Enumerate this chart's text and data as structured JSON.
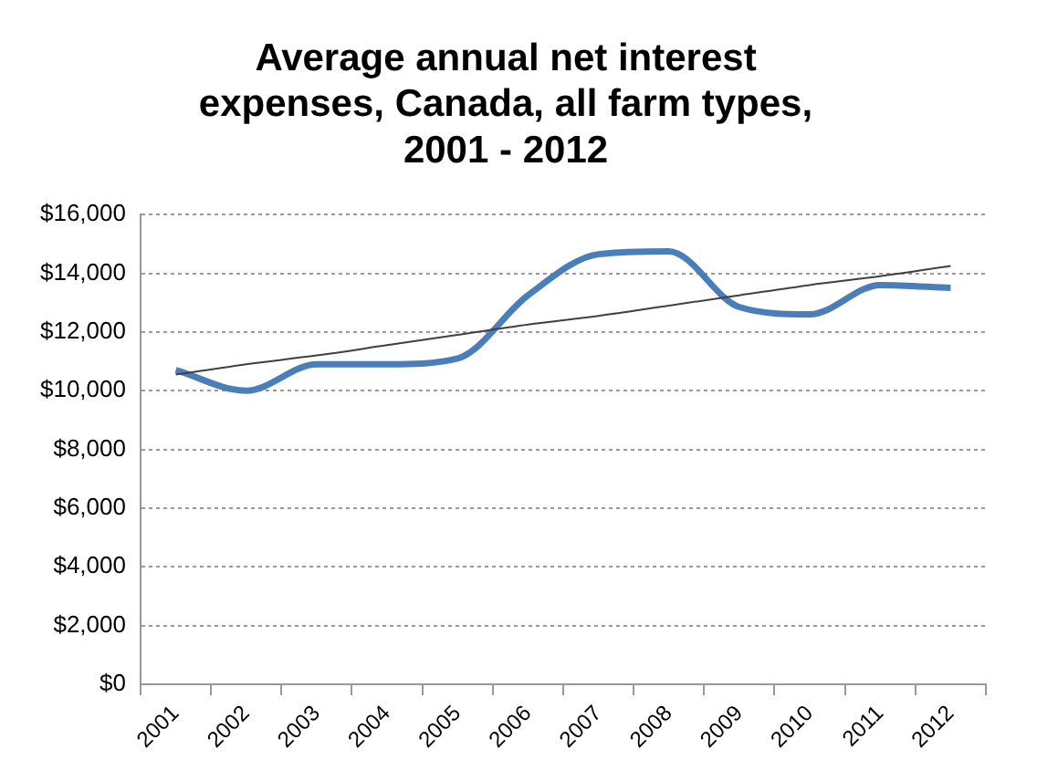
{
  "chart_data": {
    "type": "line",
    "title": "Average annual net interest expenses, Canada, all farm types, 2001 - 2012",
    "categories": [
      "2001",
      "2002",
      "2003",
      "2004",
      "2005",
      "2006",
      "2007",
      "2008",
      "2009",
      "2010",
      "2011",
      "2012"
    ],
    "series": [
      {
        "color": "#4a7ebb",
        "values": [
          10700,
          10000,
          10900,
          10900,
          11100,
          13250,
          14650,
          14750,
          12850,
          12600,
          13600,
          13500
        ]
      },
      {
        "type": "line",
        "color": "#404040",
        "values": [
          10550,
          10900,
          11200,
          11550,
          11900,
          12250,
          12550,
          12900,
          13250,
          13600,
          13900,
          14250
        ]
      }
    ],
    "ylim": [
      0,
      16000
    ],
    "yticks": [
      {
        "value": 0,
        "label": "$0"
      },
      {
        "value": 2000,
        "label": "$2,000"
      },
      {
        "value": 4000,
        "label": "$4,000"
      },
      {
        "value": 6000,
        "label": "$6,000"
      },
      {
        "value": 8000,
        "label": "$8,000"
      },
      {
        "value": 10000,
        "label": "$10,000"
      },
      {
        "value": 12000,
        "label": "$12,000"
      },
      {
        "value": 14000,
        "label": "$14,000"
      },
      {
        "value": 16000,
        "label": "$16,000"
      }
    ],
    "grid": "y",
    "legend": false,
    "marker": "none"
  }
}
